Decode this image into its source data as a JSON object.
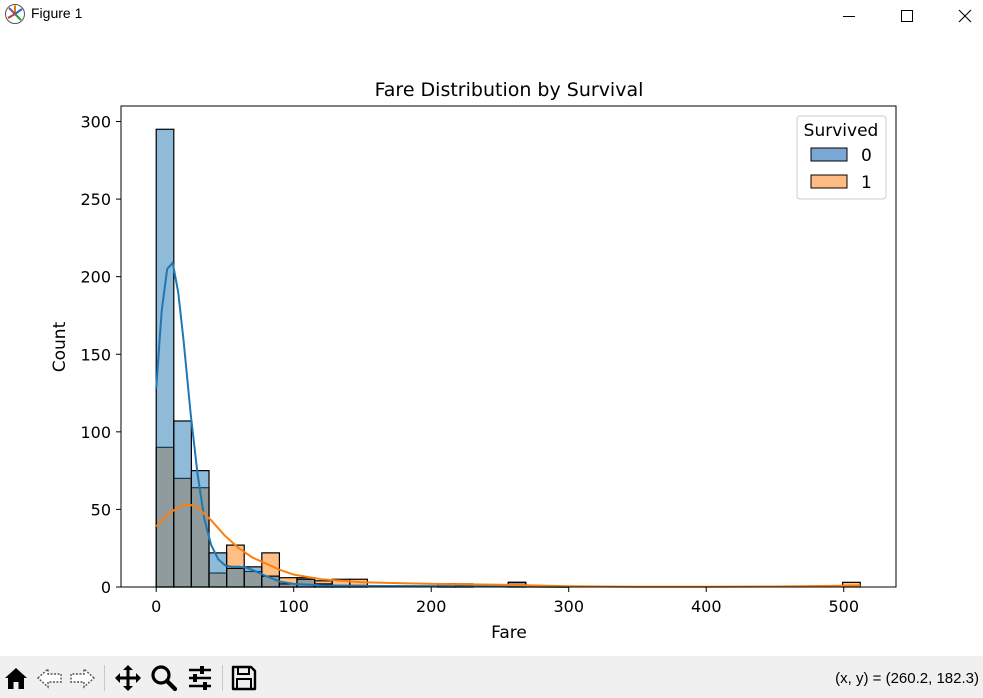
{
  "window": {
    "title": "Figure 1",
    "app_icon": "matplotlib-icon",
    "controls": [
      "minimize-icon",
      "maximize-icon",
      "close-icon"
    ]
  },
  "toolbar": {
    "buttons": [
      "home-icon",
      "back-icon",
      "forward-icon",
      "pan-icon",
      "zoom-icon",
      "configure-subplots-icon",
      "save-icon"
    ],
    "coords_text": "(x, y) = (260.2, 182.3)"
  },
  "colors": {
    "survived_0": "#1f77b4",
    "survived_1": "#ff7f0e",
    "toolbar_bg": "#f0f0f0"
  },
  "chart_data": {
    "type": "bar",
    "title": "Fare Distribution by Survival",
    "xlabel": "Fare",
    "ylabel": "Count",
    "xlim": [
      -25.6,
      538
    ],
    "ylim": [
      0,
      310
    ],
    "xticks": [
      0,
      100,
      200,
      300,
      400,
      500
    ],
    "yticks": [
      0,
      50,
      100,
      150,
      200,
      250,
      300
    ],
    "bin_width": 12.8,
    "bin_starts": [
      0,
      12.8,
      25.6,
      38.4,
      51.2,
      64,
      76.8,
      89.6,
      102.4,
      115.2,
      128,
      140.8,
      204.8,
      217.6,
      256,
      499.2
    ],
    "legend": {
      "title": "Survived",
      "entries": [
        "0",
        "1"
      ],
      "position": "upper right"
    },
    "series": [
      {
        "name": "0",
        "values": [
          295,
          107,
          75,
          22,
          12,
          13,
          7,
          2,
          5,
          2,
          1,
          1,
          2,
          1,
          3,
          0
        ]
      },
      {
        "name": "1",
        "values": [
          90,
          70,
          64,
          9,
          27,
          10,
          22,
          6,
          6,
          4,
          5,
          5,
          2,
          2,
          3,
          3
        ]
      }
    ],
    "kde": [
      {
        "name": "0",
        "x": [
          0,
          4,
          8,
          12,
          16,
          20,
          25,
          30,
          35,
          40,
          45,
          50,
          55,
          60,
          65,
          70,
          80,
          90,
          100,
          120,
          150,
          200,
          250,
          300
        ],
        "y": [
          128,
          178,
          205,
          209,
          190,
          158,
          112,
          73,
          44,
          27,
          18,
          14,
          13,
          13,
          12.5,
          11,
          7,
          3.5,
          2,
          1,
          0.7,
          0.6,
          0.3,
          0
        ]
      },
      {
        "name": "1",
        "x": [
          0,
          10,
          20,
          25,
          30,
          40,
          50,
          60,
          70,
          80,
          90,
          100,
          120,
          150,
          200,
          250,
          300,
          350,
          400,
          450,
          500,
          512
        ],
        "y": [
          39,
          48,
          53,
          53,
          51,
          43,
          33,
          25,
          19,
          15,
          11,
          8,
          5,
          3,
          2,
          1.5,
          0.5,
          0.2,
          0.1,
          0.3,
          0.8,
          1
        ]
      }
    ]
  }
}
